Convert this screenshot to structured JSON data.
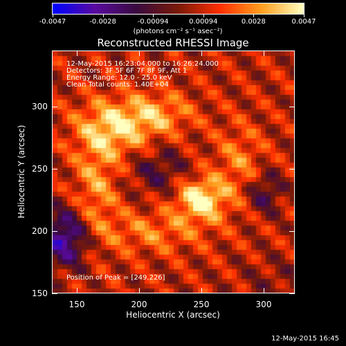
{
  "colorbar": {
    "tick_labels": [
      "-0.0047",
      "-0.0028",
      "-0.00094",
      "0.00094",
      "0.0028",
      "0.0047"
    ],
    "units": "(photons cm⁻² s⁻¹ asec⁻²)",
    "colors": [
      "#0000ff",
      "#5a0aa0",
      "#3a0a40",
      "#7a1a08",
      "#ff3000",
      "#ffa020",
      "#ffffc0"
    ]
  },
  "plot": {
    "title": "Reconstructed RHESSI Image",
    "info_lines": [
      "12-May-2015 16:23:04.000 to 16:26:24.000",
      "Detectors: 3F 5F 6F 7F 8F 9F, Att 1",
      "Energy Range: 12.0 - 25.0 keV",
      "Clean    Total counts: 1.40E+04"
    ],
    "peak_text": "Position of Peak = [249,226]",
    "xlabel": "Heliocentric X (arcsec)",
    "ylabel": "Heliocentric Y (arcsec)",
    "x_ticks": [
      "150",
      "200",
      "250",
      "300"
    ],
    "y_ticks": [
      "300",
      "250",
      "200",
      "150"
    ],
    "xlim": [
      130,
      325
    ],
    "ylim": [
      150,
      345
    ]
  },
  "footer": {
    "timestamp": "12-May-2015 16:45"
  }
}
